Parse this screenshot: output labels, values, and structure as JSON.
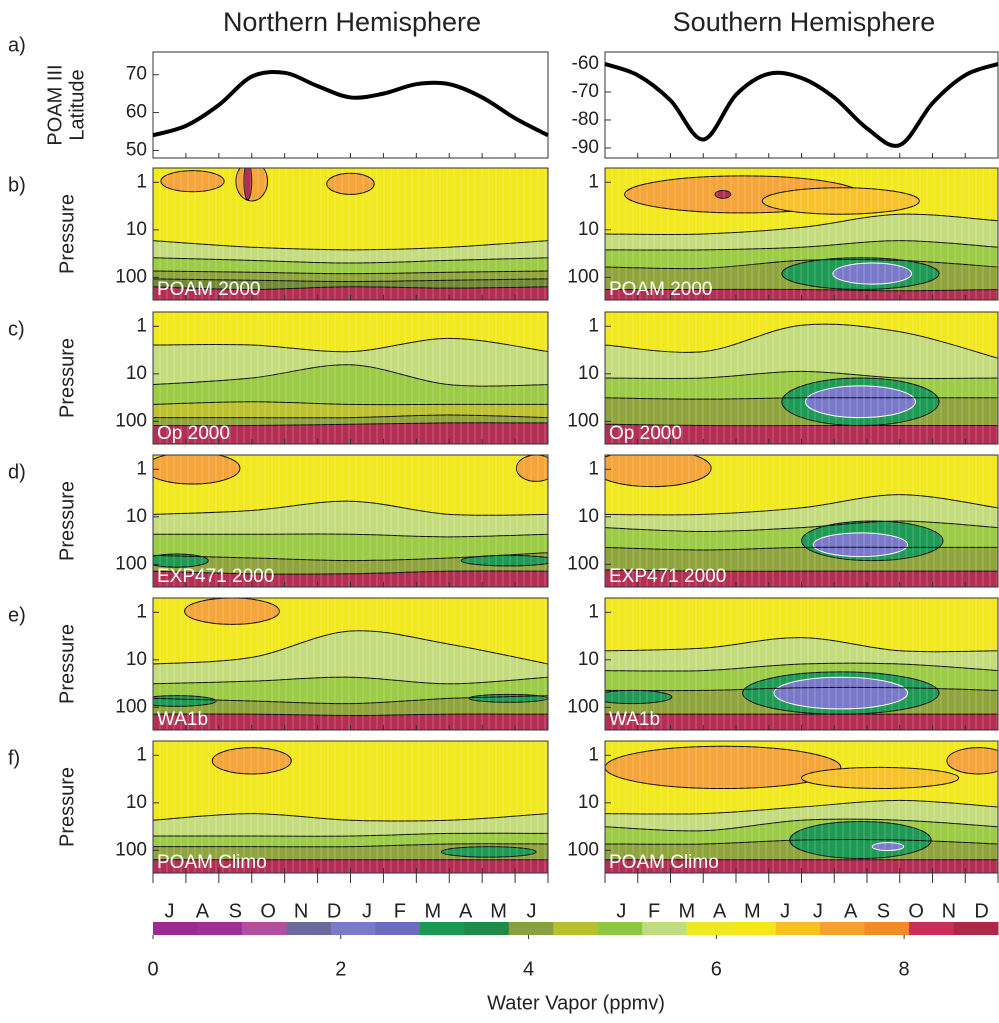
{
  "columns": [
    "Northern Hemisphere",
    "Southern Hemisphere"
  ],
  "panel_a": {
    "letter": "a)",
    "ylabel": [
      "POAM III",
      "Latitude"
    ],
    "curves": [
      {
        "ylim": [
          48,
          76
        ],
        "yticks": [
          50,
          60,
          70
        ],
        "values": [
          54,
          56.5,
          62,
          69.5,
          70.5,
          67,
          64,
          65,
          67.5,
          67.5,
          64,
          58.5,
          54
        ]
      },
      {
        "ylim": [
          -93.6,
          -55.7
        ],
        "yticks": [
          -60,
          -70,
          -80,
          -90
        ],
        "values": [
          -60,
          -64,
          -73,
          -87,
          -71,
          -63.5,
          -65,
          -72,
          -83,
          -89,
          -74,
          -64,
          -60
        ]
      }
    ]
  },
  "pressure_axis": {
    "ylabel": "Pressure",
    "ylim": [
      0.5,
      300
    ],
    "yticks": [
      1,
      10,
      100
    ],
    "log": true
  },
  "rows": [
    {
      "letter": "b)",
      "labels": [
        "POAM 2000",
        "POAM 2000"
      ]
    },
    {
      "letter": "c)",
      "labels": [
        "Op 2000",
        "Op 2000"
      ]
    },
    {
      "letter": "d)",
      "labels": [
        "EXP471 2000",
        "EXP471 2000"
      ]
    },
    {
      "letter": "e)",
      "labels": [
        "WA1b",
        "WA1b"
      ]
    },
    {
      "letter": "f)",
      "labels": [
        "POAM Climo",
        "POAM Climo"
      ]
    }
  ],
  "months": [
    [
      "J",
      "A",
      "S",
      "O",
      "N",
      "D",
      "J",
      "F",
      "M",
      "A",
      "M",
      "J"
    ],
    [
      "J",
      "F",
      "M",
      "A",
      "M",
      "J",
      "J",
      "A",
      "S",
      "O",
      "N",
      "D"
    ]
  ],
  "colorbar": {
    "label": "Water Vapor (ppmv)",
    "lim": [
      0,
      9
    ],
    "ticks": [
      0,
      2,
      4,
      6,
      8
    ],
    "colors": [
      "#9c2a96",
      "#a0309a",
      "#b44ea0",
      "#6a6aa0",
      "#7a7ac8",
      "#6b6bc0",
      "#1a9a50",
      "#1e8c48",
      "#8aa040",
      "#b9c030",
      "#8cc840",
      "#c0dc80",
      "#f0e820",
      "#f4e818",
      "#f8c020",
      "#f7a030",
      "#f28a2a",
      "#c8305a",
      "#b02848"
    ]
  }
}
